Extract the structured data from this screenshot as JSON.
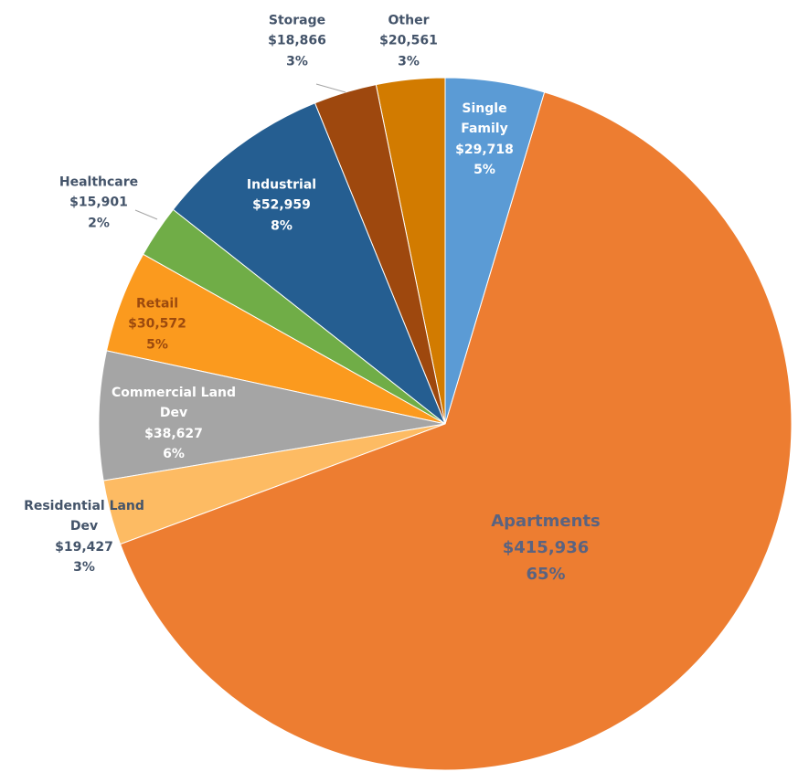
{
  "chart_data": {
    "type": "pie",
    "categories": [
      "Single Family",
      "Apartments",
      "Residential Land Dev",
      "Commercial Land Dev",
      "Retail",
      "Healthcare",
      "Industrial",
      "Storage",
      "Other"
    ],
    "values": [
      29718,
      415936,
      19427,
      38627,
      30572,
      15901,
      52959,
      18866,
      20561
    ],
    "value_labels": [
      "$29,718",
      "$415,936",
      "$19,427",
      "$38,627",
      "$30,572",
      "$15,901",
      "$52,959",
      "$18,866",
      "$20,561"
    ],
    "percent_labels": [
      "5%",
      "65%",
      "3%",
      "6%",
      "5%",
      "2%",
      "8%",
      "3%",
      "3%"
    ],
    "colors": [
      "#5b9bd5",
      "#ed7d31",
      "#fdbb63",
      "#a5a5a5",
      "#fb9a1e",
      "#70ad47",
      "#255e91",
      "#9e480e",
      "#d27b00"
    ],
    "label_colors": [
      "#ffffff",
      "#5a6380",
      "#44546a",
      "#ffffff",
      "#9c4a0e",
      "#44546a",
      "#ffffff",
      "#44546a",
      "#44546a"
    ]
  }
}
